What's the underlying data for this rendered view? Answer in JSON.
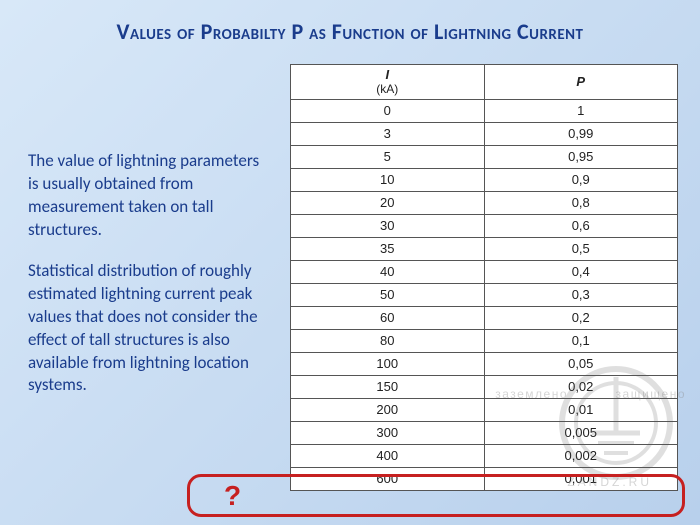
{
  "title": "Values of Probabilty P as Function of Lightning Current",
  "paragraph1": "The value of lightning parameters is usually obtained from measurement taken on tall structures.",
  "paragraph2": "Statistical distribution of roughly estimated lightning current peak values that does not consider the effect of tall structures is also available from lightning location systems.",
  "qmark": "?",
  "table": {
    "header_i": "I",
    "header_i_unit": "(kA)",
    "header_p": "P",
    "columns": [
      "I (kA)",
      "P"
    ],
    "rows": [
      [
        "0",
        "1"
      ],
      [
        "3",
        "0,99"
      ],
      [
        "5",
        "0,95"
      ],
      [
        "10",
        "0,9"
      ],
      [
        "20",
        "0,8"
      ],
      [
        "30",
        "0,6"
      ],
      [
        "35",
        "0,5"
      ],
      [
        "40",
        "0,4"
      ],
      [
        "50",
        "0,3"
      ],
      [
        "60",
        "0,2"
      ],
      [
        "80",
        "0,1"
      ],
      [
        "100",
        "0,05"
      ],
      [
        "150",
        "0,02"
      ],
      [
        "200",
        "0,01"
      ],
      [
        "300",
        "0,005"
      ],
      [
        "400",
        "0,002"
      ],
      [
        "600",
        "0,001"
      ]
    ]
  },
  "watermark": {
    "left_text": "заземлено",
    "right_text": "защищено",
    "bottom_text": "ZANDZ.RU"
  },
  "style": {
    "title_color": "#1a3c8c",
    "text_color": "#1a3c8c",
    "highlight_border": "#c62020",
    "table_border": "#555555",
    "bg_from": "#d8e8f8",
    "bg_to": "#b8d0ec",
    "title_fontsize": 22,
    "body_fontsize": 17,
    "cell_fontsize": 13
  }
}
